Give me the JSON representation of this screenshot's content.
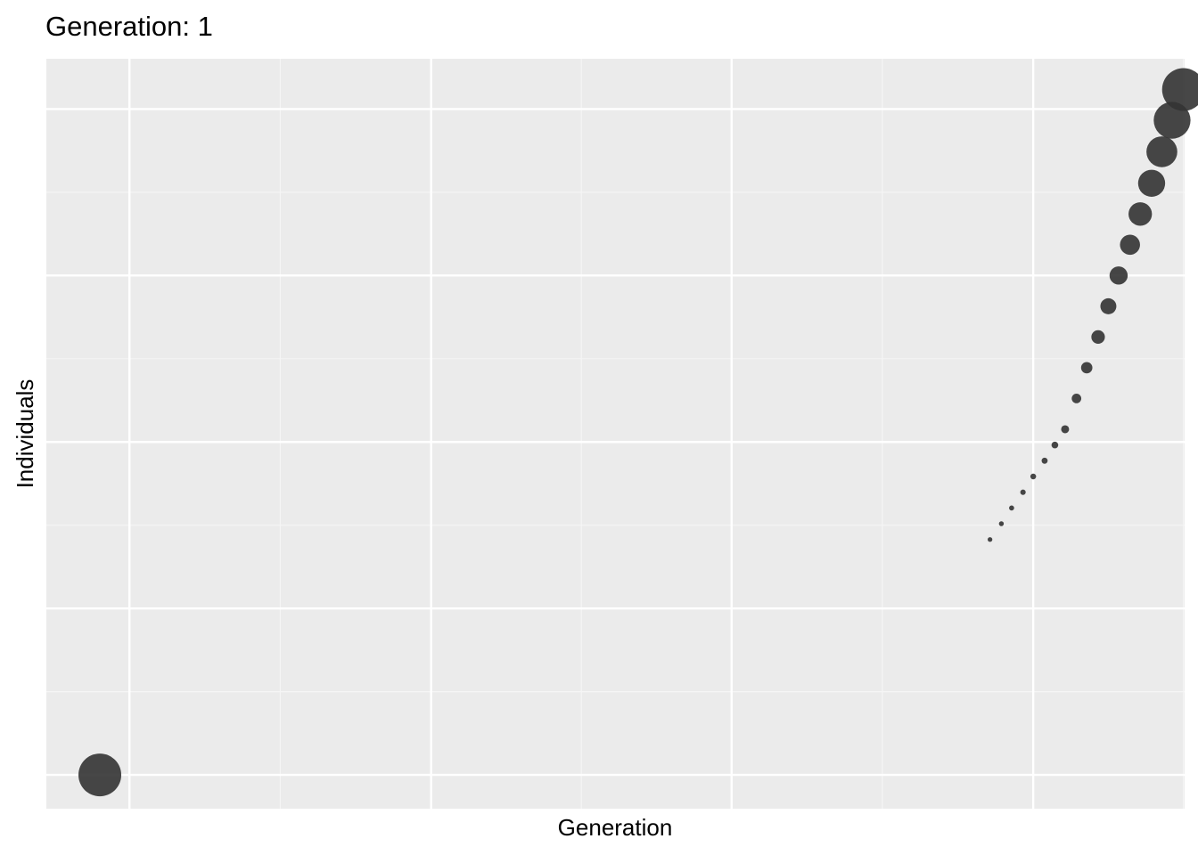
{
  "chart_data": {
    "type": "scatter",
    "title": "Generation: 1",
    "xlabel": "Generation",
    "ylabel": "Individuals",
    "xlim": [
      0,
      100
    ],
    "ylim": [
      0,
      100
    ],
    "grid": true,
    "x_major_ticks": [
      7.3,
      33.8,
      60.2,
      86.7
    ],
    "x_minor_ticks": [
      20.55,
      47.0,
      73.45,
      99.9
    ],
    "y_major_ticks": [
      4.5,
      26.7,
      48.9,
      71.1,
      93.3
    ],
    "y_minor_ticks": [
      15.6,
      37.8,
      60.0,
      82.2
    ],
    "points": [
      {
        "x": 4.7,
        "y": 4.5,
        "size": 100
      },
      {
        "x": 99.9,
        "y": 95.9,
        "size": 100
      },
      {
        "x": 98.9,
        "y": 91.8,
        "size": 74
      },
      {
        "x": 98.0,
        "y": 87.6,
        "size": 52
      },
      {
        "x": 97.1,
        "y": 83.4,
        "size": 40
      },
      {
        "x": 96.1,
        "y": 79.3,
        "size": 30
      },
      {
        "x": 95.2,
        "y": 75.2,
        "size": 22
      },
      {
        "x": 94.2,
        "y": 71.1,
        "size": 18
      },
      {
        "x": 93.3,
        "y": 67.0,
        "size": 14
      },
      {
        "x": 92.4,
        "y": 62.9,
        "size": 10
      },
      {
        "x": 91.4,
        "y": 58.8,
        "size": 7
      },
      {
        "x": 90.5,
        "y": 54.7,
        "size": 5
      },
      {
        "x": 89.5,
        "y": 50.6,
        "size": 3.5
      },
      {
        "x": 88.6,
        "y": 48.5,
        "size": 2.5
      },
      {
        "x": 87.7,
        "y": 46.4,
        "size": 2
      },
      {
        "x": 86.7,
        "y": 44.3,
        "size": 1.8
      },
      {
        "x": 85.8,
        "y": 42.2,
        "size": 1.6
      },
      {
        "x": 84.8,
        "y": 40.1,
        "size": 1.4
      },
      {
        "x": 83.9,
        "y": 38.0,
        "size": 1.3
      },
      {
        "x": 82.9,
        "y": 35.9,
        "size": 1.2
      }
    ],
    "colors": {
      "panel": "#ebebeb",
      "grid_major": "#ffffff",
      "grid_minor": "#f5f5f5",
      "point": "#333333"
    }
  }
}
